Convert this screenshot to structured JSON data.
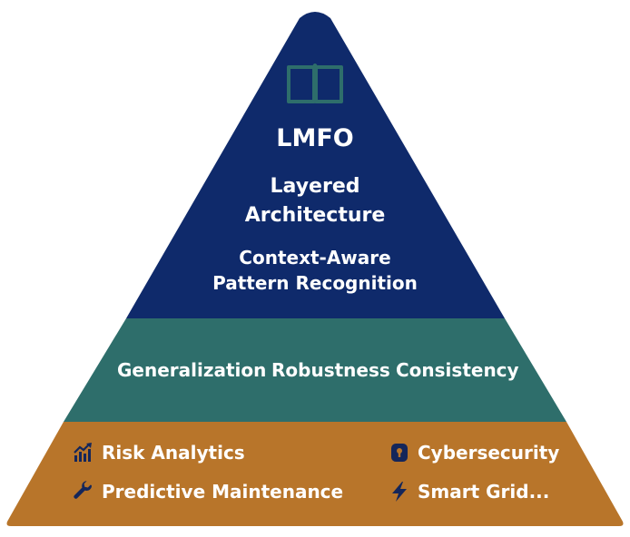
{
  "colors": {
    "top_tier": "#0f2a6b",
    "middle_tier": "#2e6e6b",
    "bottom_tier": "#b8752a",
    "book_icon": "#2e6e6b",
    "bottom_icons": "#14265a",
    "text": "#ffffff"
  },
  "top": {
    "icon": "open-book-icon",
    "title": "LMFO",
    "architecture_line1": "Layered",
    "architecture_line2": "Architecture",
    "context_line1": "Context-Aware",
    "context_line2": "Pattern Recognition"
  },
  "middle": {
    "items": [
      "Generalization",
      "Robustness",
      "Consistency"
    ]
  },
  "bottom": {
    "items": [
      {
        "label": "Risk Analytics",
        "icon": "bar-chart-icon"
      },
      {
        "label": "Cybersecurity",
        "icon": "lock-icon"
      },
      {
        "label": "Predictive Maintenance",
        "icon": "wrench-icon"
      },
      {
        "label": "Smart Grid...",
        "icon": "lightning-icon"
      }
    ]
  }
}
